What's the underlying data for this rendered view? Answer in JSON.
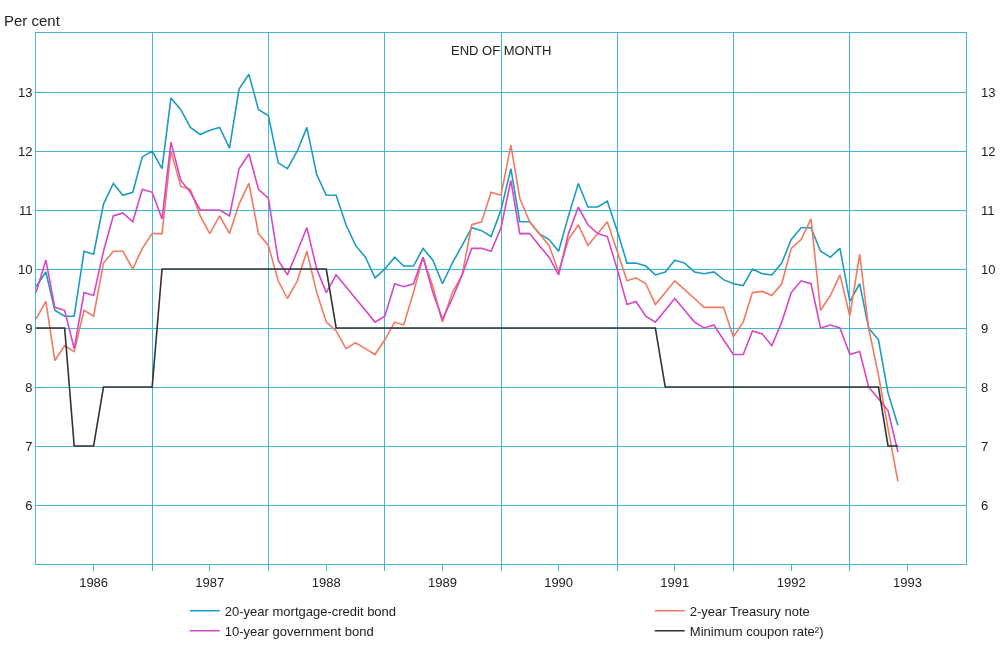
{
  "chart_data": {
    "type": "line",
    "subtitle": "END OF MONTH",
    "ylabel": "Per cent",
    "x": [
      "1986-01",
      "1986-02",
      "1986-03",
      "1986-04",
      "1986-05",
      "1986-06",
      "1986-07",
      "1986-08",
      "1986-09",
      "1986-10",
      "1986-11",
      "1986-12",
      "1987-01",
      "1987-02",
      "1987-03",
      "1987-04",
      "1987-05",
      "1987-06",
      "1987-07",
      "1987-08",
      "1987-09",
      "1987-10",
      "1987-11",
      "1987-12",
      "1988-01",
      "1988-02",
      "1988-03",
      "1988-04",
      "1988-05",
      "1988-06",
      "1988-07",
      "1988-08",
      "1988-09",
      "1988-10",
      "1988-11",
      "1988-12",
      "1989-01",
      "1989-02",
      "1989-03",
      "1989-04",
      "1989-05",
      "1989-06",
      "1989-07",
      "1989-08",
      "1989-09",
      "1989-10",
      "1989-11",
      "1989-12",
      "1990-01",
      "1990-02",
      "1990-03",
      "1990-04",
      "1990-05",
      "1990-06",
      "1990-07",
      "1990-08",
      "1990-09",
      "1990-10",
      "1990-11",
      "1990-12",
      "1991-01",
      "1991-02",
      "1991-03",
      "1991-04",
      "1991-05",
      "1991-06",
      "1991-07",
      "1991-08",
      "1991-09",
      "1991-10",
      "1991-11",
      "1991-12",
      "1992-01",
      "1992-02",
      "1992-03",
      "1992-04",
      "1992-05",
      "1992-06",
      "1992-07",
      "1992-08",
      "1992-09",
      "1992-10",
      "1992-11",
      "1992-12",
      "1993-01",
      "1993-02",
      "1993-03",
      "1993-04",
      "1993-05",
      "1993-06"
    ],
    "series": [
      {
        "name": "20-year mortgage-credit bond",
        "color": "#1c9cc0",
        "values": [
          9.7,
          9.95,
          9.3,
          9.2,
          9.2,
          10.3,
          10.25,
          11.1,
          11.45,
          11.25,
          11.3,
          11.9,
          12.0,
          11.7,
          12.9,
          12.7,
          12.4,
          12.28,
          12.35,
          12.4,
          12.05,
          13.05,
          13.3,
          12.7,
          12.6,
          11.8,
          11.7,
          12.0,
          12.4,
          11.6,
          11.25,
          11.25,
          10.75,
          10.4,
          10.2,
          9.85,
          10.0,
          10.2,
          10.05,
          10.05,
          10.35,
          10.15,
          9.75,
          10.1,
          10.4,
          10.7,
          10.65,
          10.55,
          11.0,
          11.7,
          10.8,
          10.8,
          10.6,
          10.5,
          10.3,
          10.9,
          11.45,
          11.05,
          11.05,
          11.15,
          10.65,
          10.1,
          10.1,
          10.05,
          9.9,
          9.95,
          10.15,
          10.1,
          9.95,
          9.92,
          9.95,
          9.82,
          9.75,
          9.72,
          10.0,
          9.92,
          9.9,
          10.1,
          10.5,
          10.7,
          10.7,
          10.3,
          10.2,
          10.35,
          9.45,
          9.75,
          9.0,
          8.8,
          7.9,
          7.35
        ]
      },
      {
        "name": "2-year Treasury note",
        "color": "#f27a62",
        "values": [
          9.15,
          9.45,
          8.45,
          8.7,
          8.6,
          9.3,
          9.2,
          10.1,
          10.3,
          10.3,
          10.0,
          10.35,
          10.6,
          10.6,
          12.0,
          11.4,
          11.35,
          10.9,
          10.6,
          10.9,
          10.6,
          11.1,
          11.45,
          10.6,
          10.4,
          9.8,
          9.5,
          9.8,
          10.3,
          9.6,
          9.1,
          8.95,
          8.65,
          8.75,
          8.65,
          8.55,
          8.8,
          9.1,
          9.05,
          9.6,
          10.2,
          9.7,
          9.1,
          9.6,
          9.9,
          10.75,
          10.8,
          11.3,
          11.25,
          12.1,
          11.2,
          10.8,
          10.6,
          10.4,
          9.95,
          10.5,
          10.75,
          10.4,
          10.6,
          10.8,
          10.3,
          9.8,
          9.85,
          9.75,
          9.4,
          9.6,
          9.8,
          9.65,
          9.5,
          9.35,
          9.35,
          9.35,
          8.85,
          9.1,
          9.6,
          9.62,
          9.55,
          9.75,
          10.35,
          10.5,
          10.85,
          9.3,
          9.55,
          9.9,
          9.2,
          10.25,
          9.0,
          8.2,
          7.3,
          6.4
        ]
      },
      {
        "name": "10-year government bond",
        "color": "#d646c6",
        "values": [
          9.6,
          10.15,
          9.35,
          9.3,
          8.65,
          9.6,
          9.55,
          10.3,
          10.9,
          10.95,
          10.8,
          11.35,
          11.3,
          10.85,
          12.15,
          11.5,
          11.3,
          11.0,
          11.0,
          11.0,
          10.9,
          11.7,
          11.95,
          11.35,
          11.2,
          10.15,
          9.9,
          10.3,
          10.7,
          10.0,
          9.6,
          9.9,
          9.7,
          9.5,
          9.3,
          9.1,
          9.2,
          9.75,
          9.7,
          9.75,
          10.2,
          9.6,
          9.15,
          9.5,
          9.9,
          10.35,
          10.35,
          10.3,
          10.7,
          11.5,
          10.6,
          10.6,
          10.4,
          10.2,
          9.9,
          10.6,
          11.05,
          10.75,
          10.6,
          10.55,
          10.0,
          9.4,
          9.45,
          9.2,
          9.1,
          9.3,
          9.5,
          9.3,
          9.1,
          9.0,
          9.05,
          8.8,
          8.55,
          8.55,
          8.95,
          8.9,
          8.7,
          9.1,
          9.6,
          9.8,
          9.75,
          9.0,
          9.05,
          9.0,
          8.55,
          8.6,
          8.0,
          7.8,
          7.6,
          6.9
        ]
      },
      {
        "name": "Minimum coupon rate²)",
        "color": "#333333",
        "values": [
          9,
          9,
          9,
          9,
          7,
          7,
          7,
          8,
          8,
          8,
          8,
          8,
          8,
          10,
          10,
          10,
          10,
          10,
          10,
          10,
          10,
          10,
          10,
          10,
          10,
          10,
          10,
          10,
          10,
          10,
          10,
          9,
          9,
          9,
          9,
          9,
          9,
          9,
          9,
          9,
          9,
          9,
          9,
          9,
          9,
          9,
          9,
          9,
          9,
          9,
          9,
          9,
          9,
          9,
          9,
          9,
          9,
          9,
          9,
          9,
          9,
          9,
          9,
          9,
          9,
          8,
          8,
          8,
          8,
          8,
          8,
          8,
          8,
          8,
          8,
          8,
          8,
          8,
          8,
          8,
          8,
          8,
          8,
          8,
          8,
          8,
          8,
          8,
          7,
          7
        ]
      }
    ],
    "xlim": [
      "1986-01-01",
      "1994-01-01"
    ],
    "xticks": [
      {
        "value": "1986-07-01",
        "label": "1986"
      },
      {
        "value": "1987-01-01",
        "label": null
      },
      {
        "value": "1987-07-01",
        "label": "1987"
      },
      {
        "value": "1988-01-01",
        "label": null
      },
      {
        "value": "1988-07-01",
        "label": "1988"
      },
      {
        "value": "1989-01-01",
        "label": null
      },
      {
        "value": "1989-07-01",
        "label": "1989"
      },
      {
        "value": "1990-01-01",
        "label": null
      },
      {
        "value": "1990-07-01",
        "label": "1990"
      },
      {
        "value": "1991-01-01",
        "label": null
      },
      {
        "value": "1991-07-01",
        "label": "1991"
      },
      {
        "value": "1992-01-01",
        "label": null
      },
      {
        "value": "1992-07-01",
        "label": "1992"
      },
      {
        "value": "1993-01-01",
        "label": null
      },
      {
        "value": "1993-07-01",
        "label": "1993"
      }
    ],
    "ylim": [
      5,
      14
    ],
    "yticks": [
      6,
      7,
      8,
      9,
      10,
      11,
      12,
      13
    ],
    "y2lim": [
      5,
      14
    ],
    "y2ticks": [
      6,
      7,
      8,
      9,
      10,
      11,
      12,
      13
    ],
    "grid": true,
    "legend": "bottom",
    "marker": "none",
    "line_style": "solid"
  }
}
